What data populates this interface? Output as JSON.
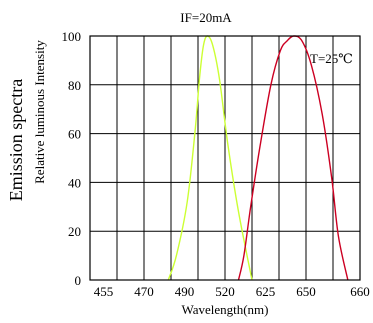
{
  "chart_data": {
    "type": "line",
    "title": "IF=20mA",
    "annotation": "T=25℃",
    "xlabel": "Wavelength(nm)",
    "ylabel_main": "Emission spectra",
    "ylabel_sub": "Relative luminous Intensity",
    "x_categories": [
      "455",
      "470",
      "490",
      "520",
      "625",
      "650",
      "660"
    ],
    "ylim": [
      0,
      100
    ],
    "y_ticks": [
      0,
      20,
      40,
      60,
      80,
      100
    ],
    "grid": true,
    "series": [
      {
        "color": "#ccff33",
        "x": [
          2.9,
          3.2,
          3.6,
          3.9,
          4.05,
          4.2,
          4.35,
          4.55,
          4.8,
          5.1,
          5.5,
          6.0
        ],
        "y": [
          0,
          10,
          32,
          62,
          82,
          96,
          100,
          96,
          82,
          56,
          28,
          0
        ]
      },
      {
        "color": "#cc0022",
        "x": [
          5.5,
          5.7,
          5.95,
          6.3,
          6.7,
          7.05,
          7.3,
          7.55,
          7.85,
          8.2,
          8.6,
          8.95,
          9.2,
          9.55
        ],
        "y": [
          0,
          10,
          30,
          55,
          80,
          94,
          98,
          100,
          98,
          88,
          68,
          42,
          18,
          0
        ]
      }
    ]
  }
}
